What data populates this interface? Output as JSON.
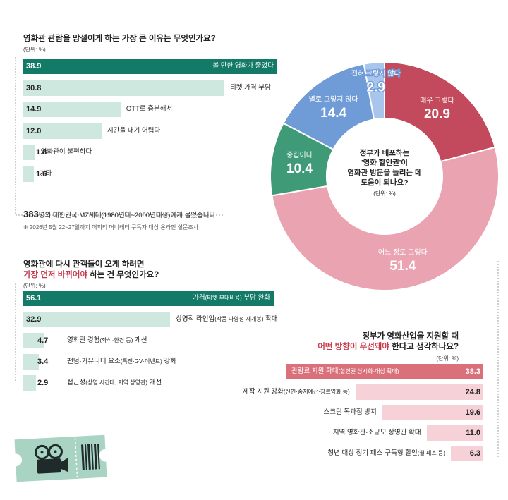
{
  "survey": {
    "count": "383",
    "text": "명의 대한민국 MZ세대(1980년대~2000년대생)에게 물었습니다.",
    "footnote": "※ 2026년 5월 22~27일까지 어피티 머니레터 구독자 대상 온라인 설문조사"
  },
  "colors": {
    "green": "#127a67",
    "mint": "#cfe8df",
    "rose": "#d9707a",
    "pink": "#f6d2d8",
    "donut_red": "#c34a5c",
    "donut_pink": "#e9a3b1",
    "donut_green": "#3f9a77",
    "donut_blue": "#6f9bd6",
    "donut_lightblue": "#a8c6ec",
    "ticket": "#a9d3c3"
  },
  "chart_data": [
    {
      "type": "bar",
      "title": "영화관 관람을 망설이게 하는 가장 큰 이유는 무엇인가요?",
      "unit": "(단위: %)",
      "categories": [
        "볼 만한 영화가 줄었다",
        "티켓 가격 부담",
        "OTT로 충분해서",
        "시간을 내기 어렵다",
        "영화관이 불편하다",
        "기타"
      ],
      "values": [
        38.9,
        30.8,
        14.9,
        12.0,
        1.8,
        1.6
      ],
      "value_labels": [
        "38.9",
        "30.8",
        "14.9",
        "12.0",
        "1.8",
        "1.6"
      ]
    },
    {
      "type": "bar",
      "title_pre": "영화관에 다시 관객들이 오게 하려면",
      "title_hl": "가장 먼저 바뀌어야",
      "title_post": " 하는 건 무엇인가요?",
      "unit": "(단위: %)",
      "categories": [
        {
          "main": "가격",
          "sub": "(티켓·부대비용)",
          "tail": " 부담 완화"
        },
        {
          "main": "상영작 라인업",
          "sub": "(작품 다양성·재개봉)",
          "tail": " 확대"
        },
        {
          "main": "영화관 경험",
          "sub": "(좌석·환경 등)",
          "tail": " 개선"
        },
        {
          "main": "팬덤·커뮤니티 요소",
          "sub": "(특전·GV·이벤트)",
          "tail": " 강화"
        },
        {
          "main": "접근성",
          "sub": "(상영 시간대, 지역 상영관)",
          "tail": " 개선"
        }
      ],
      "values": [
        56.1,
        32.9,
        4.7,
        3.4,
        2.9
      ],
      "value_labels": [
        "56.1",
        "32.9",
        "4.7",
        "3.4",
        "2.9"
      ]
    },
    {
      "type": "pie",
      "title_lines": [
        "정부가 배포하는",
        "'영화 할인권'이",
        "영화관 방문을 늘리는 데",
        "도움이 되나요?"
      ],
      "unit": "(단위: %)",
      "categories": [
        "매우 그렇다",
        "어느 정도 그렇다",
        "중립이다",
        "별로 그렇지 않다",
        "전혀 그렇지 않다"
      ],
      "values": [
        20.9,
        51.4,
        10.4,
        14.4,
        2.9
      ],
      "value_labels": [
        "20.9",
        "51.4",
        "10.4",
        "14.4",
        "2.9"
      ]
    },
    {
      "type": "bar",
      "title_line1": "정부가 영화산업을 지원할 때",
      "title_hl": "어떤 방향이 우선돼야",
      "title_post": " 한다고 생각하나요?",
      "unit": "(단위: %)",
      "categories": [
        {
          "main": "관람료 지원 확대",
          "sub": "(할인권 상시화·대상 확대)"
        },
        {
          "main": "제작 지원 강화",
          "sub": "(신인·중저예산·장르영화 등)"
        },
        {
          "main": "스크린 독과점 방지",
          "sub": ""
        },
        {
          "main": "지역 영화관·소규모 상영관 확대",
          "sub": ""
        },
        {
          "main": "청년 대상 정기 패스·구독형 할인",
          "sub": "(월 패스 등)"
        }
      ],
      "values": [
        38.3,
        24.8,
        19.6,
        11.0,
        6.3
      ],
      "value_labels": [
        "38.3",
        "24.8",
        "19.6",
        "11.0",
        "6.3"
      ]
    }
  ]
}
